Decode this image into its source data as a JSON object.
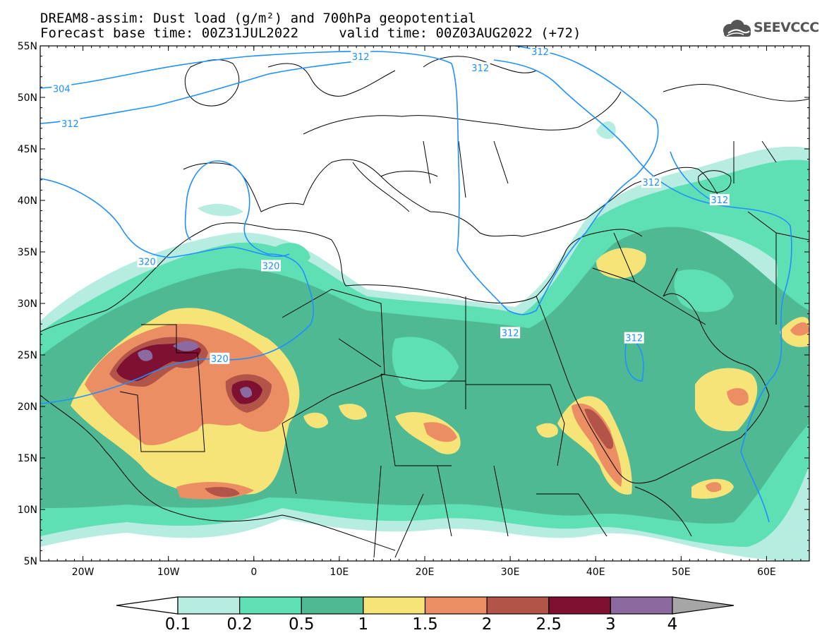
{
  "title": {
    "line1": "DREAM8-assim: Dust load (g/m²) and 700hPa geopotential",
    "line2": "Forecast base time: 00Z31JUL2022     valid time: 00Z03AUG2022 (+72)"
  },
  "logo": {
    "text": "SEEVCCC",
    "icon": "cloud-icon"
  },
  "map": {
    "lon_range": [
      -25,
      65
    ],
    "lat_range": [
      5,
      55
    ],
    "lat_ticks": [
      {
        "value": 55,
        "label": "55N"
      },
      {
        "value": 50,
        "label": "50N"
      },
      {
        "value": 45,
        "label": "45N"
      },
      {
        "value": 40,
        "label": "40N"
      },
      {
        "value": 35,
        "label": "35N"
      },
      {
        "value": 30,
        "label": "30N"
      },
      {
        "value": 25,
        "label": "25N"
      },
      {
        "value": 20,
        "label": "20N"
      },
      {
        "value": 15,
        "label": "15N"
      },
      {
        "value": 10,
        "label": "10N"
      },
      {
        "value": 5,
        "label": "5N"
      }
    ],
    "lon_ticks": [
      {
        "value": -20,
        "label": "20W"
      },
      {
        "value": -10,
        "label": "10W"
      },
      {
        "value": 0,
        "label": "0"
      },
      {
        "value": 10,
        "label": "10E"
      },
      {
        "value": 20,
        "label": "20E"
      },
      {
        "value": 30,
        "label": "30E"
      },
      {
        "value": 40,
        "label": "40E"
      },
      {
        "value": 50,
        "label": "50E"
      },
      {
        "value": 60,
        "label": "60E"
      }
    ],
    "contour_color": "#1e90ff",
    "contour_labels": [
      {
        "text": "304",
        "lon": -22.5,
        "lat": 50.8
      },
      {
        "text": "312",
        "lon": -21.5,
        "lat": 47.4
      },
      {
        "text": "312",
        "lon": 12.5,
        "lat": 53.9
      },
      {
        "text": "312",
        "lon": 26.5,
        "lat": 52.8
      },
      {
        "text": "312",
        "lon": 33.5,
        "lat": 54.4
      },
      {
        "text": "312",
        "lon": 46.5,
        "lat": 41.7
      },
      {
        "text": "312",
        "lon": 54.5,
        "lat": 40.0
      },
      {
        "text": "312",
        "lon": 30.0,
        "lat": 27.1
      },
      {
        "text": "312",
        "lon": 44.5,
        "lat": 26.6
      },
      {
        "text": "320",
        "lon": -12.5,
        "lat": 34.0
      },
      {
        "text": "320",
        "lon": 2.0,
        "lat": 33.6
      },
      {
        "text": "320",
        "lon": -4.0,
        "lat": 24.6
      }
    ]
  },
  "colorbar": {
    "colors": [
      "#ffffff",
      "#b7ede1",
      "#5fdfb4",
      "#4fb994",
      "#f6e479",
      "#ec8e63",
      "#b35449",
      "#7e1031",
      "#8b6aa0",
      "#a6a6a6"
    ],
    "ticks": [
      "0.1",
      "0.2",
      "0.5",
      "1",
      "1.5",
      "2",
      "2.5",
      "3",
      "4"
    ]
  }
}
